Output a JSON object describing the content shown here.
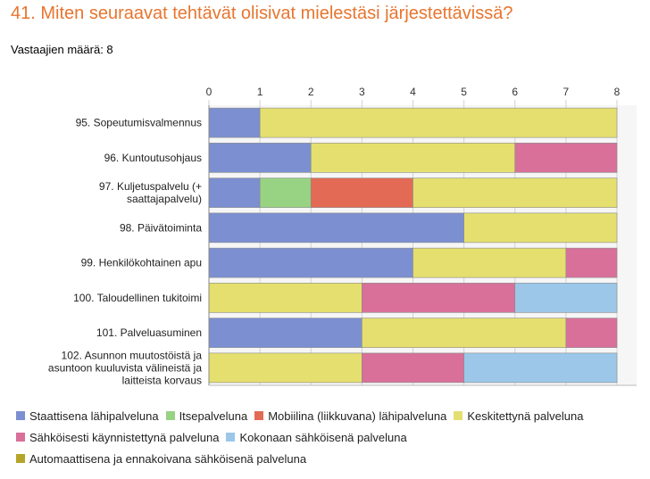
{
  "title": "41. Miten seuraavat tehtävät olisivat mielestäsi järjestettävissä?",
  "respondents": "Vastaajien määrä: 8",
  "chart_data": {
    "type": "bar",
    "orientation": "horizontal",
    "stacked": true,
    "xlim": [
      0,
      8
    ],
    "ticks": [
      "0",
      "1",
      "2",
      "3",
      "4",
      "5",
      "6",
      "7",
      "8"
    ],
    "grid": true,
    "legend_position": "bottom",
    "categories": [
      [
        "95. Sopeutumisvalmennus"
      ],
      [
        "96. Kuntoutusohjaus"
      ],
      [
        "97. Kuljetuspalvelu (+",
        "saattajapalvelu)"
      ],
      [
        "98. Päivätoiminta"
      ],
      [
        "99. Henkilökohtainen apu"
      ],
      [
        "100. Taloudellinen tukitoimi"
      ],
      [
        "101. Palveluasuminen"
      ],
      [
        "102. Asunnon muutostöistä ja",
        "asuntoon kuuluvista välineistä ja",
        "laitteista korvaus"
      ]
    ],
    "series": [
      {
        "name": "Staattisena lähipalveluna",
        "color": "#7b8fd1",
        "values": [
          1,
          2,
          1,
          5,
          4,
          0,
          3,
          0
        ]
      },
      {
        "name": "Itsepalveluna",
        "color": "#98d283",
        "values": [
          0,
          0,
          1,
          0,
          0,
          0,
          0,
          0
        ]
      },
      {
        "name": "Mobiilina (liikkuvana) lähipalveluna",
        "color": "#e36a55",
        "values": [
          0,
          0,
          2,
          0,
          0,
          0,
          0,
          0
        ]
      },
      {
        "name": "Keskitettynä palveluna",
        "color": "#e5df6f",
        "values": [
          7,
          4,
          4,
          3,
          3,
          3,
          4,
          3
        ]
      },
      {
        "name": "Sähköisesti käynnistettynä palveluna",
        "color": "#d8709a",
        "values": [
          0,
          2,
          0,
          0,
          1,
          3,
          1,
          2
        ]
      },
      {
        "name": "Kokonaan sähköisenä palveluna",
        "color": "#9cc7e8",
        "values": [
          0,
          0,
          0,
          0,
          0,
          2,
          0,
          3
        ]
      },
      {
        "name": "Automaattisena ja ennakoivana sähköisenä palveluna",
        "color": "#b4a52a",
        "values": [
          0,
          0,
          0,
          0,
          0,
          0,
          0,
          0
        ]
      }
    ]
  }
}
